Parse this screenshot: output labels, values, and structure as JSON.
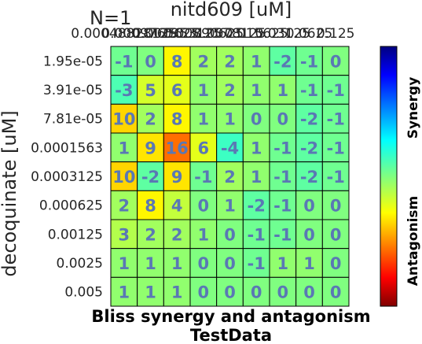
{
  "chart_data": {
    "type": "heatmap",
    "annotation_top_left": "N=1",
    "xlabel": "nitd609 [uM]",
    "ylabel": "decoquinate [uM]",
    "title_line1": "Bliss synergy and antagonism",
    "title_line2": "TestData",
    "x_ticks": [
      "0.00048828125",
      "0.0009765625",
      "0.001953125",
      "0.00390625",
      "0.0078125",
      "0.015625",
      "0.03125",
      "0.0625",
      "0.125"
    ],
    "y_ticks": [
      "1.95e-05",
      "3.91e-05",
      "7.81e-05",
      "0.0001563",
      "0.0003125",
      "0.000625",
      "0.00125",
      "0.0025",
      "0.005"
    ],
    "values": [
      [
        -1,
        0,
        8,
        2,
        2,
        1,
        -2,
        -1,
        0
      ],
      [
        -3,
        5,
        6,
        1,
        2,
        1,
        1,
        -1,
        -1
      ],
      [
        10,
        2,
        8,
        1,
        1,
        0,
        0,
        -2,
        -1
      ],
      [
        1,
        9,
        16,
        6,
        -4,
        1,
        -1,
        -2,
        -1
      ],
      [
        10,
        -2,
        9,
        -1,
        2,
        1,
        -1,
        -2,
        -1
      ],
      [
        2,
        8,
        4,
        0,
        1,
        -2,
        -1,
        0,
        0
      ],
      [
        3,
        2,
        2,
        1,
        0,
        -1,
        -1,
        0,
        0
      ],
      [
        1,
        1,
        1,
        0,
        0,
        -1,
        1,
        1,
        0
      ],
      [
        1,
        1,
        1,
        0,
        0,
        0,
        0,
        0,
        0
      ]
    ],
    "colorbar": {
      "colormap": "jet",
      "range": [
        -30,
        30
      ],
      "label_top": "Synergy",
      "label_bottom": "Antagonism"
    },
    "grid": true
  }
}
